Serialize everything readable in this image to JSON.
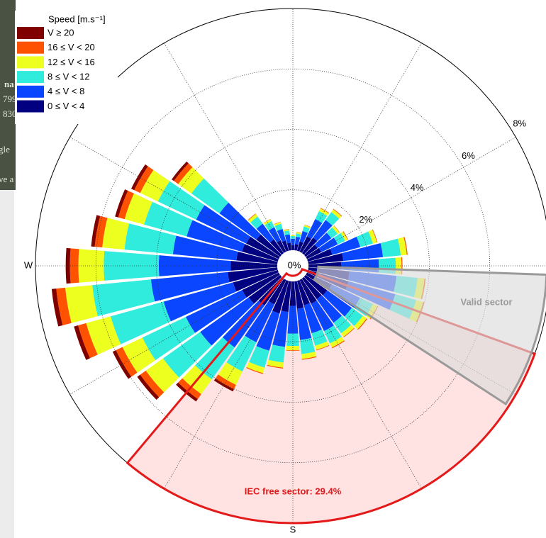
{
  "chart_data": {
    "type": "windrose",
    "legend_title": "Speed [m.s⁻¹]",
    "directions": [
      0,
      10,
      20,
      30,
      40,
      50,
      60,
      70,
      80,
      90,
      100,
      110,
      120,
      130,
      140,
      150,
      160,
      170,
      180,
      190,
      200,
      210,
      220,
      230,
      240,
      250,
      260,
      270,
      280,
      290,
      300,
      310,
      320,
      330,
      340,
      350
    ],
    "series": [
      {
        "name": "0 ≤ V < 4",
        "color": "#000080",
        "values": [
          0.18,
          0.21,
          0.32,
          0.56,
          0.63,
          0.49,
          0.53,
          0.84,
          1.16,
          1.09,
          1.37,
          1.4,
          0.91,
          0.88,
          0.84,
          0.88,
          0.84,
          0.91,
          0.81,
          1.02,
          1.12,
          0.9,
          1.1,
          1.28,
          1.34,
          1.54,
          1.65,
          1.54,
          1.36,
          1.23,
          1.19,
          0.97,
          0.56,
          0.42,
          0.35,
          0.25
        ]
      },
      {
        "name": "4 ≤ V < 8",
        "color": "#0a46ff",
        "values": [
          0.2,
          0.24,
          0.36,
          0.64,
          0.72,
          0.56,
          0.6,
          0.96,
          1.32,
          1.24,
          1.56,
          1.6,
          1.04,
          1.0,
          0.96,
          1.0,
          0.96,
          1.04,
          0.92,
          1.16,
          1.28,
          1.39,
          1.7,
          1.97,
          2.07,
          2.38,
          2.55,
          2.38,
          2.11,
          1.9,
          1.84,
          1.5,
          0.64,
          0.48,
          0.4,
          0.28
        ]
      },
      {
        "name": "8 ≤ V < 12",
        "color": "#30ecdc",
        "values": [
          0.09,
          0.11,
          0.16,
          0.29,
          0.32,
          0.25,
          0.27,
          0.43,
          0.59,
          0.56,
          0.7,
          0.72,
          0.47,
          0.45,
          0.43,
          0.45,
          0.43,
          0.47,
          0.41,
          0.52,
          0.58,
          1.07,
          1.3,
          1.51,
          1.59,
          1.82,
          1.95,
          1.82,
          1.61,
          1.46,
          1.4,
          1.14,
          0.29,
          0.22,
          0.18,
          0.13
        ]
      },
      {
        "name": "12 ≤ V < 16",
        "color": "#ecff1e",
        "values": [
          0.03,
          0.04,
          0.05,
          0.1,
          0.11,
          0.08,
          0.09,
          0.14,
          0.2,
          0.19,
          0.23,
          0.24,
          0.16,
          0.15,
          0.14,
          0.15,
          0.14,
          0.16,
          0.14,
          0.17,
          0.19,
          0.49,
          0.6,
          0.7,
          0.73,
          0.84,
          0.9,
          0.84,
          0.74,
          0.67,
          0.65,
          0.53,
          0.1,
          0.07,
          0.06,
          0.04
        ]
      },
      {
        "name": "16 ≤ V < 20",
        "color": "#ff5200",
        "values": [
          0,
          0.01,
          0.01,
          0.02,
          0.02,
          0.01,
          0.02,
          0.02,
          0.03,
          0.03,
          0.04,
          0.04,
          0.03,
          0.03,
          0.02,
          0.03,
          0.02,
          0.03,
          0.02,
          0.03,
          0.03,
          0.16,
          0.2,
          0.23,
          0.24,
          0.28,
          0.3,
          0.28,
          0.25,
          0.22,
          0.22,
          0.18,
          0.02,
          0.01,
          0.01,
          0.01
        ]
      },
      {
        "name": "V ≥ 20",
        "color": "#800000",
        "values": [
          0,
          0,
          0,
          0,
          0,
          0,
          0,
          0,
          0,
          0,
          0,
          0,
          0,
          0,
          0,
          0,
          0,
          0,
          0,
          0,
          0,
          0.08,
          0.1,
          0.12,
          0.12,
          0.14,
          0.15,
          0.14,
          0.12,
          0.11,
          0.11,
          0.09,
          0,
          0,
          0,
          0
        ]
      }
    ],
    "rlim": [
      0,
      8
    ],
    "rticks": [
      {
        "value": 0,
        "label": "0%"
      },
      {
        "value": 2,
        "label": "2%"
      },
      {
        "value": 4,
        "label": "4%"
      },
      {
        "value": 6,
        "label": "6%"
      },
      {
        "value": 8,
        "label": "8%"
      }
    ],
    "direction_labels": [
      {
        "value": 270,
        "label": "W"
      },
      {
        "value": 180,
        "label": "S"
      }
    ],
    "grid": true,
    "sectors": [
      {
        "label": "IEC free sector: 29.4%",
        "from": 110,
        "to": 220,
        "color": "#e41a1a"
      },
      {
        "label": "Valid sector",
        "from": 92,
        "to": 123,
        "color": "#9a9a9a"
      }
    ]
  },
  "background": {
    "fragments": [
      "na",
      "799",
      "830",
      "gle",
      "ve a"
    ]
  }
}
